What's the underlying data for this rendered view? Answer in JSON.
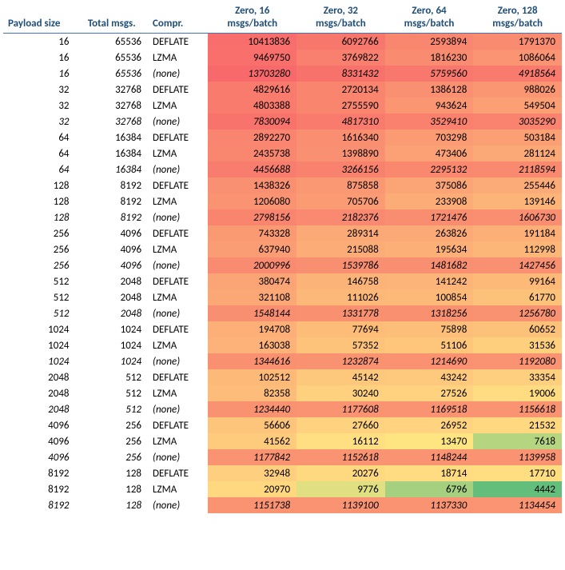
{
  "table": {
    "columns": [
      {
        "label": "Payload size",
        "class": "left-head"
      },
      {
        "label": "Total msgs.",
        "class": ""
      },
      {
        "label": "Compr.",
        "class": "left-head"
      },
      {
        "label": "Zero, 16 msgs/batch",
        "class": ""
      },
      {
        "label": "Zero, 32 msgs/batch",
        "class": ""
      },
      {
        "label": "Zero, 64 msgs/batch",
        "class": ""
      },
      {
        "label": "Zero, 128 msgs/batch",
        "class": ""
      }
    ],
    "rows": [
      {
        "payload": "16",
        "total": "65536",
        "compr": "DEFLATE",
        "v": [
          10413836,
          6092766,
          2593894,
          1791370
        ],
        "italic": false
      },
      {
        "payload": "16",
        "total": "65536",
        "compr": "LZMA",
        "v": [
          9469750,
          3769822,
          1816230,
          1086064
        ],
        "italic": false
      },
      {
        "payload": "16",
        "total": "65536",
        "compr": "(none)",
        "v": [
          13703280,
          8331432,
          5759560,
          4918564
        ],
        "italic": true
      },
      {
        "payload": "32",
        "total": "32768",
        "compr": "DEFLATE",
        "v": [
          4829616,
          2720134,
          1386128,
          988026
        ],
        "italic": false
      },
      {
        "payload": "32",
        "total": "32768",
        "compr": "LZMA",
        "v": [
          4803388,
          2755590,
          943624,
          549504
        ],
        "italic": false
      },
      {
        "payload": "32",
        "total": "32768",
        "compr": "(none)",
        "v": [
          7830094,
          4817310,
          3529410,
          3035290
        ],
        "italic": true
      },
      {
        "payload": "64",
        "total": "16384",
        "compr": "DEFLATE",
        "v": [
          2892270,
          1616340,
          703298,
          503184
        ],
        "italic": false
      },
      {
        "payload": "64",
        "total": "16384",
        "compr": "LZMA",
        "v": [
          2435738,
          1398890,
          473406,
          281124
        ],
        "italic": false
      },
      {
        "payload": "64",
        "total": "16384",
        "compr": "(none)",
        "v": [
          4456688,
          3266156,
          2295132,
          2118594
        ],
        "italic": true
      },
      {
        "payload": "128",
        "total": "8192",
        "compr": "DEFLATE",
        "v": [
          1438326,
          875858,
          375086,
          255446
        ],
        "italic": false
      },
      {
        "payload": "128",
        "total": "8192",
        "compr": "LZMA",
        "v": [
          1206080,
          705706,
          233908,
          139146
        ],
        "italic": false
      },
      {
        "payload": "128",
        "total": "8192",
        "compr": "(none)",
        "v": [
          2798156,
          2182376,
          1721476,
          1606730
        ],
        "italic": true
      },
      {
        "payload": "256",
        "total": "4096",
        "compr": "DEFLATE",
        "v": [
          743328,
          289314,
          263826,
          191184
        ],
        "italic": false
      },
      {
        "payload": "256",
        "total": "4096",
        "compr": "LZMA",
        "v": [
          637940,
          215088,
          195634,
          112998
        ],
        "italic": false
      },
      {
        "payload": "256",
        "total": "4096",
        "compr": "(none)",
        "v": [
          2000996,
          1539786,
          1481682,
          1427456
        ],
        "italic": true
      },
      {
        "payload": "512",
        "total": "2048",
        "compr": "DEFLATE",
        "v": [
          380474,
          146758,
          141242,
          99164
        ],
        "italic": false
      },
      {
        "payload": "512",
        "total": "2048",
        "compr": "LZMA",
        "v": [
          321108,
          111026,
          100854,
          61770
        ],
        "italic": false
      },
      {
        "payload": "512",
        "total": "2048",
        "compr": "(none)",
        "v": [
          1548144,
          1331778,
          1318256,
          1256780
        ],
        "italic": true
      },
      {
        "payload": "1024",
        "total": "1024",
        "compr": "DEFLATE",
        "v": [
          194708,
          77694,
          75898,
          60652
        ],
        "italic": false
      },
      {
        "payload": "1024",
        "total": "1024",
        "compr": "LZMA",
        "v": [
          163038,
          57352,
          51106,
          31536
        ],
        "italic": false
      },
      {
        "payload": "1024",
        "total": "1024",
        "compr": "(none)",
        "v": [
          1344616,
          1232874,
          1214690,
          1192080
        ],
        "italic": true
      },
      {
        "payload": "2048",
        "total": "512",
        "compr": "DEFLATE",
        "v": [
          102512,
          45142,
          43242,
          33354
        ],
        "italic": false
      },
      {
        "payload": "2048",
        "total": "512",
        "compr": "LZMA",
        "v": [
          82358,
          30240,
          27526,
          19006
        ],
        "italic": false
      },
      {
        "payload": "2048",
        "total": "512",
        "compr": "(none)",
        "v": [
          1234440,
          1177608,
          1169518,
          1156618
        ],
        "italic": true
      },
      {
        "payload": "4096",
        "total": "256",
        "compr": "DEFLATE",
        "v": [
          56606,
          27660,
          26952,
          21532
        ],
        "italic": false
      },
      {
        "payload": "4096",
        "total": "256",
        "compr": "LZMA",
        "v": [
          41562,
          16112,
          13470,
          7618
        ],
        "italic": false
      },
      {
        "payload": "4096",
        "total": "256",
        "compr": "(none)",
        "v": [
          1177842,
          1152618,
          1148244,
          1139958
        ],
        "italic": true
      },
      {
        "payload": "8192",
        "total": "128",
        "compr": "DEFLATE",
        "v": [
          32948,
          20276,
          18714,
          17710
        ],
        "italic": false
      },
      {
        "payload": "8192",
        "total": "128",
        "compr": "LZMA",
        "v": [
          20970,
          9776,
          6796,
          4442
        ],
        "italic": false
      },
      {
        "payload": "8192",
        "total": "128",
        "compr": "(none)",
        "v": [
          1151738,
          1139100,
          1137330,
          1134454
        ],
        "italic": true
      }
    ],
    "heatmap": {
      "min": 4442,
      "max": 13703280,
      "stops": [
        {
          "t": 0.0,
          "color": "#63be7b"
        },
        {
          "t": 0.03,
          "color": "#86c87d"
        },
        {
          "t": 0.08,
          "color": "#c7da81"
        },
        {
          "t": 0.12,
          "color": "#ffe883"
        },
        {
          "t": 0.2,
          "color": "#ffd780"
        },
        {
          "t": 0.35,
          "color": "#fdbe79"
        },
        {
          "t": 0.55,
          "color": "#fba576"
        },
        {
          "t": 0.75,
          "color": "#f98c70"
        },
        {
          "t": 1.0,
          "color": "#f8696b"
        }
      ]
    }
  }
}
